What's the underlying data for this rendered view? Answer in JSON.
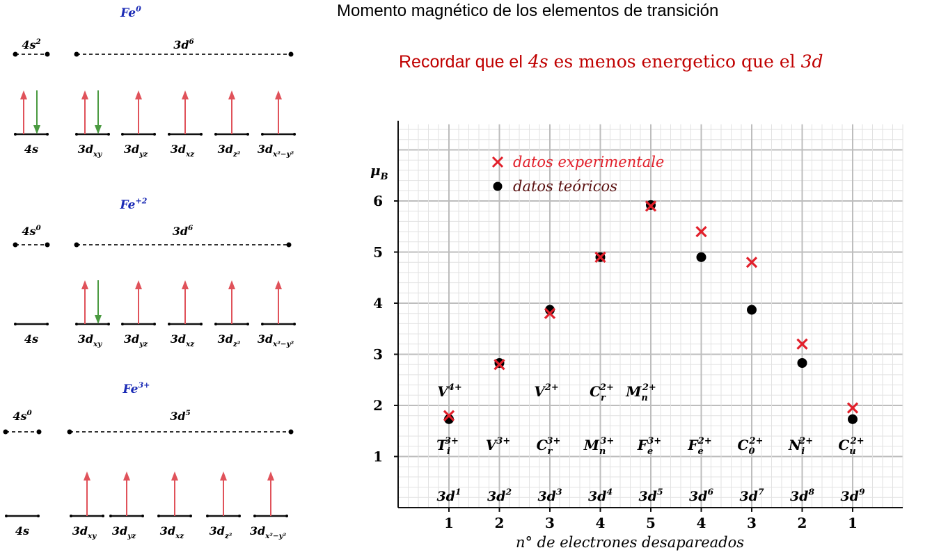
{
  "title": "Momento magnético de los elementos de transición",
  "note": {
    "prefix": "Recordar que el",
    "a": "4s",
    "mid": "es menos energetico que el",
    "b": "3d"
  },
  "colors": {
    "up_arrow": "#e0525a",
    "down_arrow": "#4a9a40",
    "experimental": "#e2202b",
    "theoretical": "#000000",
    "ion_label": "#1a2ab5",
    "note": "#c00000"
  },
  "diagrams": [
    {
      "ion": {
        "base": "Fe",
        "sup": "0"
      },
      "s_label": {
        "base": "4s",
        "sup": "2"
      },
      "d_label": {
        "base": "3d",
        "sup": "6"
      },
      "s_electrons": [
        "up",
        "down"
      ],
      "d_electrons": [
        [
          "up",
          "down"
        ],
        [
          "up"
        ],
        [
          "up"
        ],
        [
          "up"
        ],
        [
          "up"
        ]
      ]
    },
    {
      "ion": {
        "base": "Fe",
        "sup": "+2"
      },
      "s_label": {
        "base": "4s",
        "sup": "0"
      },
      "d_label": {
        "base": "3d",
        "sup": "6"
      },
      "s_electrons": [],
      "d_electrons": [
        [
          "up",
          "down"
        ],
        [
          "up"
        ],
        [
          "up"
        ],
        [
          "up"
        ],
        [
          "up"
        ]
      ]
    },
    {
      "ion": {
        "base": "Fe",
        "sup": "3+"
      },
      "s_label": {
        "base": "4s",
        "sup": "0"
      },
      "d_label": {
        "base": "3d",
        "sup": "5"
      },
      "s_electrons": [],
      "d_electrons": [
        [
          "up"
        ],
        [
          "up"
        ],
        [
          "up"
        ],
        [
          "up"
        ],
        [
          "up"
        ]
      ]
    }
  ],
  "orbital_labels": {
    "s": "4s",
    "d": [
      {
        "base": "3d",
        "sub": "xy"
      },
      {
        "base": "3d",
        "sub": "yz"
      },
      {
        "base": "3d",
        "sub": "xz"
      },
      {
        "base": "3d",
        "sub": "z²"
      },
      {
        "base": "3d",
        "sub": "x²−y²"
      }
    ]
  },
  "chart_data": {
    "type": "scatter",
    "ylabel": "μB",
    "xlabel": "n° de electrones desapareados",
    "categories": [
      "1",
      "2",
      "3",
      "4",
      "5",
      "4",
      "3",
      "2",
      "1"
    ],
    "ylim": [
      0,
      7.5
    ],
    "yticks": [
      "1",
      "2",
      "3",
      "4",
      "5",
      "6"
    ],
    "grid": true,
    "legend_position": "top-left",
    "series": [
      {
        "name": "datos experimentale",
        "marker": "x",
        "values": [
          1.8,
          2.8,
          3.8,
          4.9,
          5.9,
          5.4,
          4.8,
          3.2,
          1.95
        ]
      },
      {
        "name": "datos teóricos",
        "marker": "dot",
        "values": [
          1.73,
          2.83,
          3.87,
          4.9,
          5.92,
          4.9,
          3.87,
          2.83,
          1.73
        ]
      }
    ],
    "configurations": [
      {
        "base": "3d",
        "sup": "1"
      },
      {
        "base": "3d",
        "sup": "2"
      },
      {
        "base": "3d",
        "sup": "3"
      },
      {
        "base": "3d",
        "sup": "4"
      },
      {
        "base": "3d",
        "sup": "5"
      },
      {
        "base": "3d",
        "sup": "6"
      },
      {
        "base": "3d",
        "sup": "7"
      },
      {
        "base": "3d",
        "sup": "8"
      },
      {
        "base": "3d",
        "sup": "9"
      }
    ],
    "lower_ions": [
      {
        "base": "T",
        "sub": "i",
        "sup": "3+"
      },
      {
        "base": "V",
        "sub": "",
        "sup": "3+"
      },
      {
        "base": "C",
        "sub": "r",
        "sup": "3+"
      },
      {
        "base": "M",
        "sub": "n",
        "sup": "3+"
      },
      {
        "base": "F",
        "sub": "e",
        "sup": "3+"
      },
      {
        "base": "F",
        "sub": "e",
        "sup": "2+"
      },
      {
        "base": "C",
        "sub": "0",
        "sup": "2+"
      },
      {
        "base": "N",
        "sub": "i",
        "sup": "2+"
      },
      {
        "base": "C",
        "sub": "u",
        "sup": "2+"
      }
    ],
    "upper_ions": [
      {
        "col": 0,
        "base": "V",
        "sub": "",
        "sup": "4+"
      },
      {
        "col": 2,
        "base": "V",
        "sub": "",
        "sup": "2+"
      },
      {
        "col": 3,
        "base": "C",
        "sub": "r",
        "sup": "2+"
      },
      {
        "col": 4,
        "base": "M",
        "sub": "n",
        "sup": "2+"
      }
    ]
  }
}
